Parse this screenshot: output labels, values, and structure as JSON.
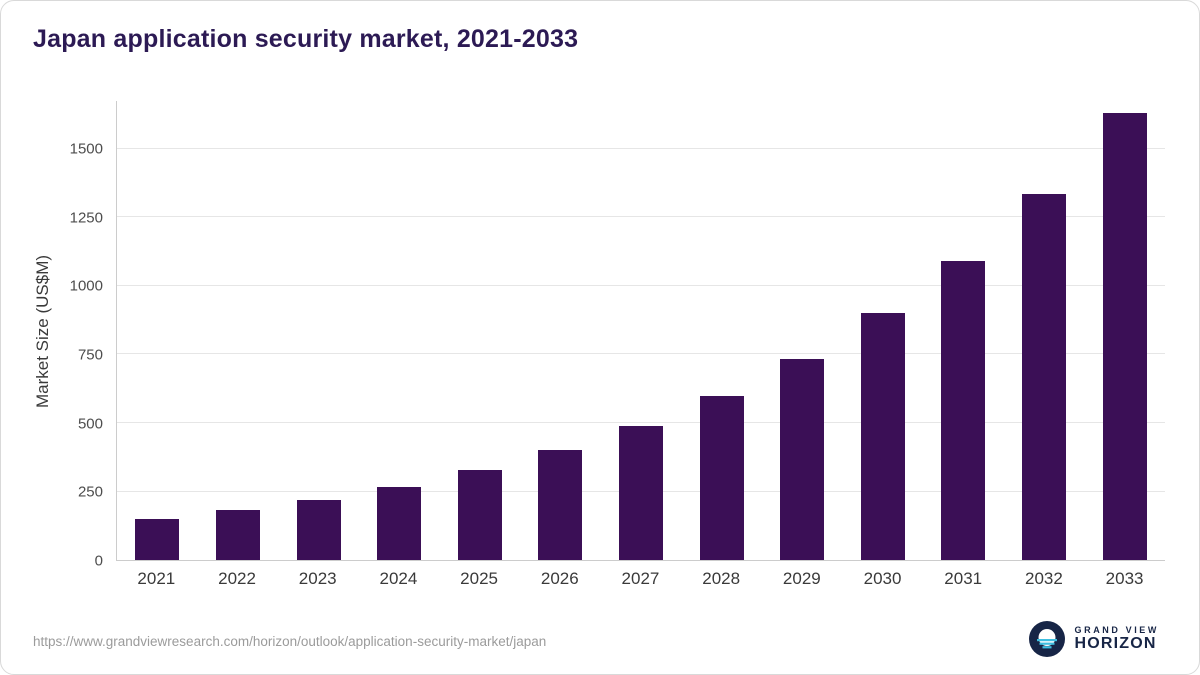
{
  "page": {
    "title": "Japan application security market, 2021-2033"
  },
  "source": {
    "url": "https://www.grandviewresearch.com/horizon/outlook/application-security-market/japan"
  },
  "logo": {
    "top": "GRAND VIEW",
    "bottom": "HORIZON"
  },
  "colors": {
    "bar": "#3b0f56",
    "title": "#2c1a54",
    "grid": "#e6e6e6",
    "axis": "#cccccc",
    "logo_navy": "#172546",
    "logo_teal": "#3fbfe0"
  },
  "chart_data": {
    "type": "bar",
    "title": "Japan application security market, 2021-2033",
    "categories": [
      "2021",
      "2022",
      "2023",
      "2024",
      "2025",
      "2026",
      "2027",
      "2028",
      "2029",
      "2030",
      "2031",
      "2032",
      "2033"
    ],
    "values": [
      150,
      182,
      220,
      266,
      330,
      402,
      490,
      600,
      735,
      900,
      1090,
      1335,
      1630
    ],
    "xlabel": "",
    "ylabel": "Market Size (US$M)",
    "ylim": [
      0,
      1675
    ],
    "yticks": [
      0,
      250,
      500,
      750,
      1000,
      1250,
      1500
    ],
    "grid": "horizontal",
    "legend": "none",
    "bar_color": "#3b0f56"
  }
}
